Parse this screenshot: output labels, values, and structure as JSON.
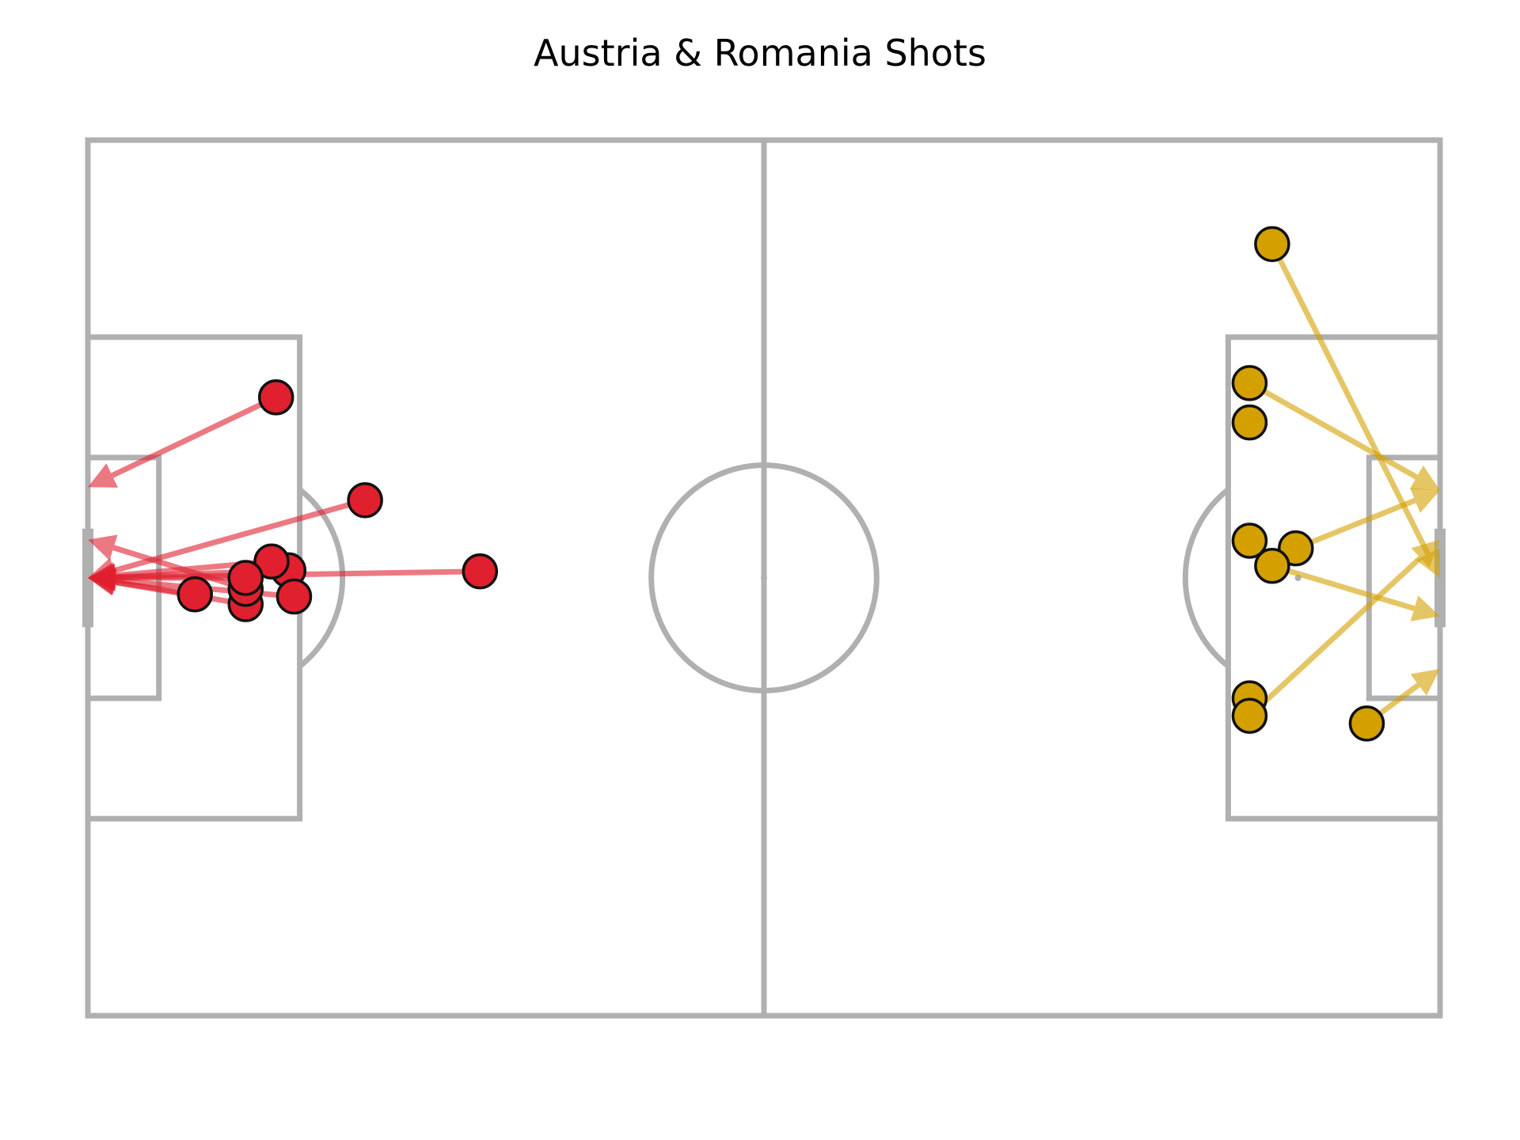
{
  "chart_data": {
    "type": "scatter",
    "title": "Austria & Romania Shots",
    "pitch": {
      "length": 120,
      "width": 80
    },
    "colors": {
      "lines": "#b0b0b0",
      "left_team": "#e0202e",
      "right_team": "#d4a000"
    },
    "series": [
      {
        "attack_direction": "left",
        "shots": [
          {
            "x": 102.2,
            "y": 40.7,
            "end_x": 120.0,
            "end_y": 40.0
          },
          {
            "x": 103.7,
            "y": 41.5,
            "end_x": 120.0,
            "end_y": 40.0
          },
          {
            "x": 110.5,
            "y": 38.5,
            "end_x": 120.0,
            "end_y": 40.0
          },
          {
            "x": 106.0,
            "y": 37.6,
            "end_x": 120.0,
            "end_y": 40.0
          },
          {
            "x": 106.0,
            "y": 39.0,
            "end_x": 120.0,
            "end_y": 43.5
          },
          {
            "x": 106.0,
            "y": 40.0,
            "end_x": 120.0,
            "end_y": 40.0
          },
          {
            "x": 101.7,
            "y": 38.3,
            "end_x": 120.0,
            "end_y": 40.0
          },
          {
            "x": 85.2,
            "y": 40.6,
            "end_x": 120.0,
            "end_y": 40.0
          },
          {
            "x": 95.4,
            "y": 47.1,
            "end_x": 120.0,
            "end_y": 40.0
          },
          {
            "x": 103.3,
            "y": 56.5,
            "end_x": 120.0,
            "end_y": 48.3
          }
        ]
      },
      {
        "attack_direction": "right",
        "shots": [
          {
            "x": 105.1,
            "y": 9.5,
            "end_x": 120.0,
            "end_y": 40.0
          },
          {
            "x": 103.1,
            "y": 22.2,
            "end_x": 120.0,
            "end_y": 32.0
          },
          {
            "x": 103.1,
            "y": 25.8
          },
          {
            "x": 103.1,
            "y": 36.6
          },
          {
            "x": 107.2,
            "y": 37.3,
            "end_x": 120.0,
            "end_y": 32.0
          },
          {
            "x": 105.1,
            "y": 38.9,
            "end_x": 120.0,
            "end_y": 43.5
          },
          {
            "x": 103.1,
            "y": 51.0
          },
          {
            "x": 103.1,
            "y": 52.6,
            "end_x": 120.0,
            "end_y": 36.5
          },
          {
            "x": 113.5,
            "y": 53.3,
            "end_x": 120.0,
            "end_y": 48.3
          }
        ]
      }
    ]
  }
}
